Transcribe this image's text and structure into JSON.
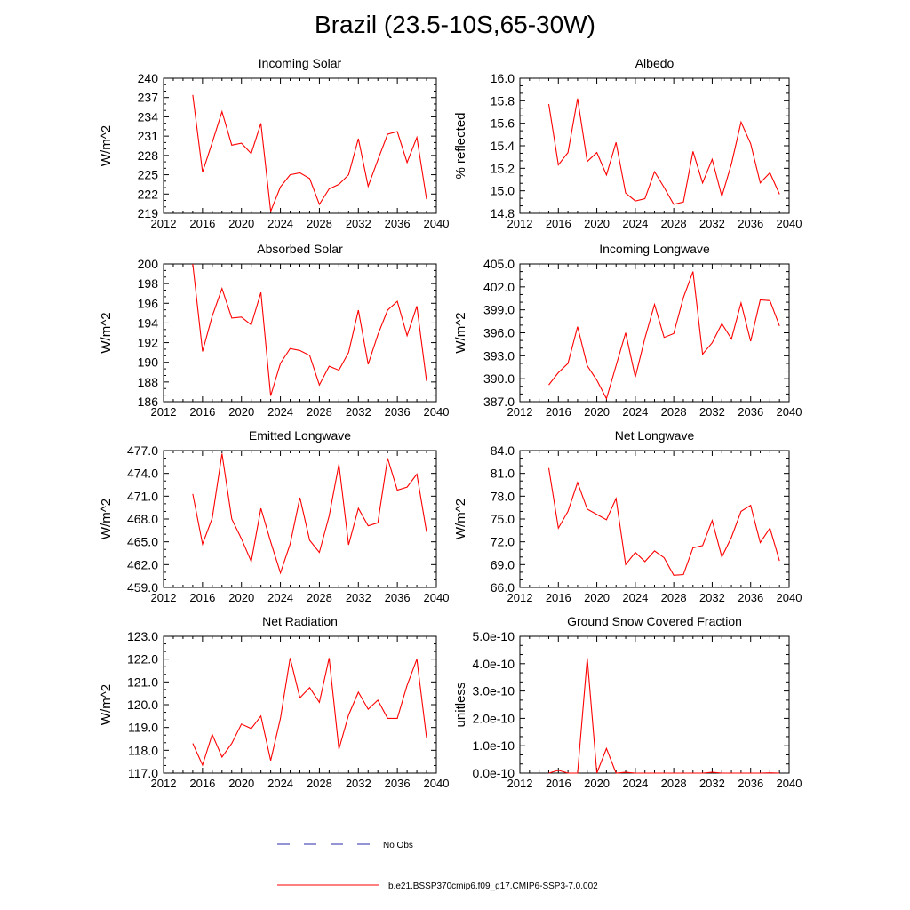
{
  "title": "Brazil (23.5-10S,65-30W)",
  "colors": {
    "model_line": "#ff0000",
    "obs_line": "#2a2aa8",
    "axis": "#000000"
  },
  "legend": [
    {
      "label": "No Obs",
      "style": "dashed",
      "color": "#2a2aa8"
    },
    {
      "label": "b.e21.BSSP370cmip6.f09_g17.CMIP6-SSP3-7.0.002",
      "style": "solid",
      "color": "#ff0000"
    }
  ],
  "chart_data": [
    {
      "type": "line",
      "title": "Incoming Solar",
      "ylabel": "W/m^2",
      "xlim": [
        2012,
        2040
      ],
      "xticks": [
        2012,
        2016,
        2020,
        2024,
        2028,
        2032,
        2036,
        2040
      ],
      "ylim": [
        219,
        240
      ],
      "yticks": [
        "219",
        "222",
        "225",
        "228",
        "231",
        "234",
        "237",
        "240"
      ],
      "x": [
        2015,
        2016,
        2017,
        2018,
        2019,
        2020,
        2021,
        2022,
        2023,
        2024,
        2025,
        2026,
        2027,
        2028,
        2029,
        2030,
        2031,
        2032,
        2033,
        2034,
        2035,
        2036,
        2037,
        2038,
        2039
      ],
      "series": [
        {
          "name": "b.e21.BSSP370cmip6.f09_g17.CMIP6-SSP3-7.0.002",
          "values": [
            237.4,
            225.4,
            230.0,
            234.8,
            229.6,
            229.9,
            228.3,
            233.0,
            219.3,
            223.1,
            225.0,
            225.3,
            224.4,
            220.4,
            222.8,
            223.5,
            225.0,
            230.6,
            223.2,
            227.3,
            231.3,
            231.7,
            226.9,
            230.8,
            221.2
          ]
        }
      ]
    },
    {
      "type": "line",
      "title": "Albedo",
      "ylabel": "% reflected",
      "xlim": [
        2012,
        2040
      ],
      "xticks": [
        2012,
        2016,
        2020,
        2024,
        2028,
        2032,
        2036,
        2040
      ],
      "ylim": [
        14.8,
        16.0
      ],
      "yticks": [
        "14.8",
        "15.0",
        "15.2",
        "15.4",
        "15.6",
        "15.8",
        "16.0"
      ],
      "x": [
        2015,
        2016,
        2017,
        2018,
        2019,
        2020,
        2021,
        2022,
        2023,
        2024,
        2025,
        2026,
        2027,
        2028,
        2029,
        2030,
        2031,
        2032,
        2033,
        2034,
        2035,
        2036,
        2037,
        2038,
        2039
      ],
      "series": [
        {
          "name": "b.e21.BSSP370cmip6.f09_g17.CMIP6-SSP3-7.0.002",
          "values": [
            15.77,
            15.23,
            15.34,
            15.82,
            15.26,
            15.34,
            15.14,
            15.43,
            14.98,
            14.91,
            14.93,
            15.17,
            15.03,
            14.88,
            14.9,
            15.35,
            15.07,
            15.28,
            14.95,
            15.24,
            15.61,
            15.42,
            15.07,
            15.16,
            14.97
          ]
        }
      ]
    },
    {
      "type": "line",
      "title": "Absorbed Solar",
      "ylabel": "W/m^2",
      "xlim": [
        2012,
        2040
      ],
      "xticks": [
        2012,
        2016,
        2020,
        2024,
        2028,
        2032,
        2036,
        2040
      ],
      "ylim": [
        186,
        200
      ],
      "yticks": [
        "186",
        "188",
        "190",
        "192",
        "194",
        "196",
        "198",
        "200"
      ],
      "x": [
        2015,
        2016,
        2017,
        2018,
        2019,
        2020,
        2021,
        2022,
        2023,
        2024,
        2025,
        2026,
        2027,
        2028,
        2029,
        2030,
        2031,
        2032,
        2033,
        2034,
        2035,
        2036,
        2037,
        2038,
        2039
      ],
      "series": [
        {
          "name": "b.e21.BSSP370cmip6.f09_g17.CMIP6-SSP3-7.0.002",
          "values": [
            200.0,
            191.1,
            194.7,
            197.5,
            194.5,
            194.6,
            193.8,
            197.1,
            186.6,
            189.9,
            191.4,
            191.2,
            190.7,
            187.7,
            189.6,
            189.2,
            191.0,
            195.3,
            189.8,
            192.8,
            195.3,
            196.2,
            192.7,
            195.7,
            188.1
          ]
        }
      ]
    },
    {
      "type": "line",
      "title": "Incoming Longwave",
      "ylabel": "W/m^2",
      "xlim": [
        2012,
        2040
      ],
      "xticks": [
        2012,
        2016,
        2020,
        2024,
        2028,
        2032,
        2036,
        2040
      ],
      "ylim": [
        387.0,
        405.0
      ],
      "yticks": [
        "387.0",
        "390.0",
        "393.0",
        "396.0",
        "399.0",
        "402.0",
        "405.0"
      ],
      "x": [
        2015,
        2016,
        2017,
        2018,
        2019,
        2020,
        2021,
        2022,
        2023,
        2024,
        2025,
        2026,
        2027,
        2028,
        2029,
        2030,
        2031,
        2032,
        2033,
        2034,
        2035,
        2036,
        2037,
        2038,
        2039
      ],
      "series": [
        {
          "name": "b.e21.BSSP370cmip6.f09_g17.CMIP6-SSP3-7.0.002",
          "values": [
            389.2,
            390.8,
            392.0,
            396.8,
            391.7,
            389.8,
            387.4,
            391.7,
            396.0,
            390.2,
            395.3,
            399.7,
            395.4,
            395.9,
            400.6,
            404.0,
            393.2,
            394.7,
            397.2,
            395.2,
            399.9,
            394.9,
            400.3,
            400.2,
            396.9
          ]
        }
      ]
    },
    {
      "type": "line",
      "title": "Emitted Longwave",
      "ylabel": "W/m^2",
      "xlim": [
        2012,
        2040
      ],
      "xticks": [
        2012,
        2016,
        2020,
        2024,
        2028,
        2032,
        2036,
        2040
      ],
      "ylim": [
        459.0,
        477.0
      ],
      "yticks": [
        "459.0",
        "462.0",
        "465.0",
        "468.0",
        "471.0",
        "474.0",
        "477.0"
      ],
      "x": [
        2015,
        2016,
        2017,
        2018,
        2019,
        2020,
        2021,
        2022,
        2023,
        2024,
        2025,
        2026,
        2027,
        2028,
        2029,
        2030,
        2031,
        2032,
        2033,
        2034,
        2035,
        2036,
        2037,
        2038,
        2039
      ],
      "series": [
        {
          "name": "b.e21.BSSP370cmip6.f09_g17.CMIP6-SSP3-7.0.002",
          "values": [
            471.3,
            464.7,
            468.1,
            476.6,
            468.0,
            465.4,
            462.4,
            469.4,
            465.0,
            460.9,
            464.7,
            470.8,
            465.2,
            463.6,
            468.4,
            475.2,
            464.6,
            469.4,
            467.1,
            467.5,
            476.0,
            471.8,
            472.2,
            473.9,
            466.3
          ]
        }
      ]
    },
    {
      "type": "line",
      "title": "Net Longwave",
      "ylabel": "W/m^2",
      "xlim": [
        2012,
        2040
      ],
      "xticks": [
        2012,
        2016,
        2020,
        2024,
        2028,
        2032,
        2036,
        2040
      ],
      "ylim": [
        66.0,
        84.0
      ],
      "yticks": [
        "66.0",
        "69.0",
        "72.0",
        "75.0",
        "78.0",
        "81.0",
        "84.0"
      ],
      "x": [
        2015,
        2016,
        2017,
        2018,
        2019,
        2020,
        2021,
        2022,
        2023,
        2024,
        2025,
        2026,
        2027,
        2028,
        2029,
        2030,
        2031,
        2032,
        2033,
        2034,
        2035,
        2036,
        2037,
        2038,
        2039
      ],
      "series": [
        {
          "name": "b.e21.BSSP370cmip6.f09_g17.CMIP6-SSP3-7.0.002",
          "values": [
            81.7,
            73.8,
            76.0,
            79.8,
            76.3,
            75.6,
            74.9,
            77.7,
            69.0,
            70.6,
            69.4,
            70.8,
            69.9,
            67.6,
            67.7,
            71.2,
            71.5,
            74.8,
            70.0,
            72.6,
            76.0,
            76.8,
            71.9,
            73.8,
            69.5
          ]
        }
      ]
    },
    {
      "type": "line",
      "title": "Net Radiation",
      "ylabel": "W/m^2",
      "xlim": [
        2012,
        2040
      ],
      "xticks": [
        2012,
        2016,
        2020,
        2024,
        2028,
        2032,
        2036,
        2040
      ],
      "ylim": [
        117.0,
        123.0
      ],
      "yticks": [
        "117.0",
        "118.0",
        "119.0",
        "120.0",
        "121.0",
        "122.0",
        "123.0"
      ],
      "x": [
        2015,
        2016,
        2017,
        2018,
        2019,
        2020,
        2021,
        2022,
        2023,
        2024,
        2025,
        2026,
        2027,
        2028,
        2029,
        2030,
        2031,
        2032,
        2033,
        2034,
        2035,
        2036,
        2037,
        2038,
        2039
      ],
      "series": [
        {
          "name": "b.e21.BSSP370cmip6.f09_g17.CMIP6-SSP3-7.0.002",
          "values": [
            118.3,
            117.35,
            118.7,
            117.7,
            118.3,
            119.15,
            118.95,
            119.5,
            117.55,
            119.4,
            122.05,
            120.3,
            120.75,
            120.1,
            122.05,
            118.05,
            119.55,
            120.55,
            119.8,
            120.2,
            119.4,
            119.4,
            120.85,
            122.0,
            118.55
          ]
        }
      ]
    },
    {
      "type": "line",
      "title": "Ground Snow Covered Fraction",
      "ylabel": "unitless",
      "xlim": [
        2012,
        2040
      ],
      "xticks": [
        2012,
        2016,
        2020,
        2024,
        2028,
        2032,
        2036,
        2040
      ],
      "ylim": [
        0,
        5e-10
      ],
      "yticks": [
        "0.0e-10",
        "1.0e-10",
        "2.0e-10",
        "3.0e-10",
        "4.0e-10",
        "5.0e-10"
      ],
      "x": [
        2015,
        2016,
        2017,
        2018,
        2019,
        2020,
        2021,
        2022,
        2023,
        2024,
        2025,
        2026,
        2027,
        2028,
        2029,
        2030,
        2031,
        2032,
        2033,
        2034,
        2035,
        2036,
        2037,
        2038,
        2039
      ],
      "series": [
        {
          "name": "b.e21.BSSP370cmip6.f09_g17.CMIP6-SSP3-7.0.002",
          "values": [
            0,
            1e-11,
            0,
            0,
            4.2e-10,
            0,
            9e-11,
            0,
            3e-12,
            0,
            0,
            0,
            0,
            0,
            0,
            0,
            0,
            3e-12,
            0,
            0,
            0,
            0,
            0,
            1e-12,
            0
          ]
        }
      ]
    }
  ]
}
